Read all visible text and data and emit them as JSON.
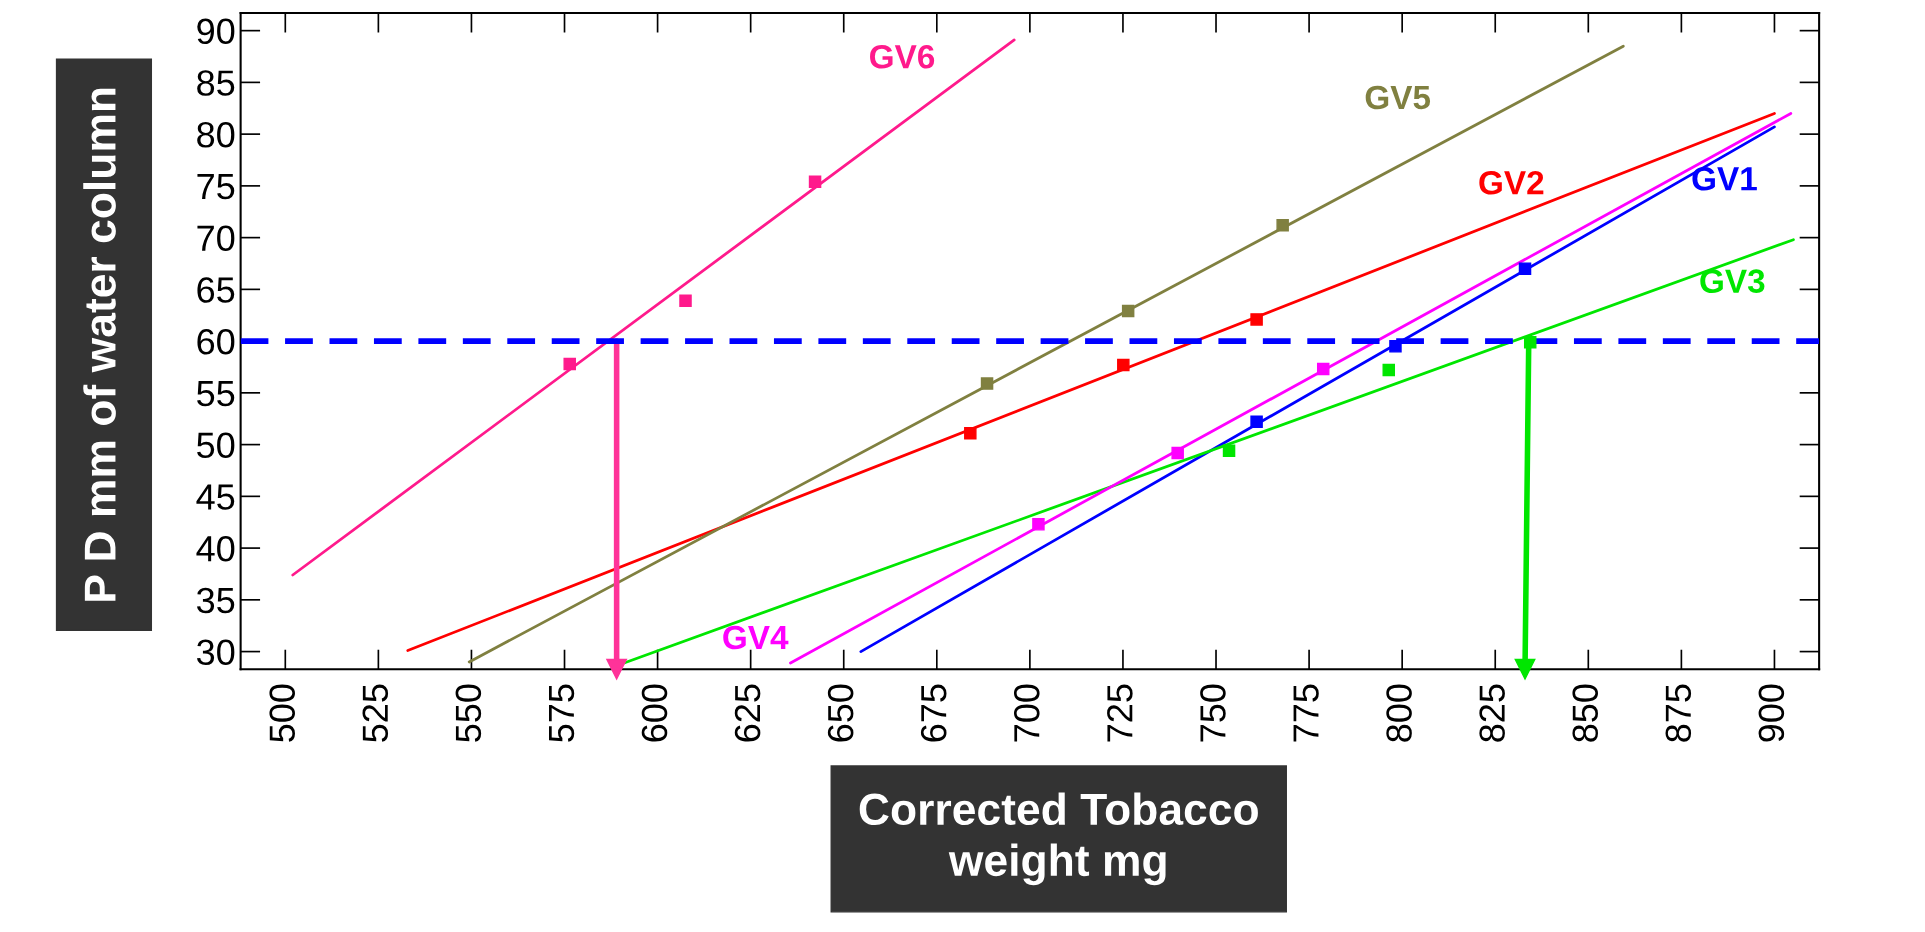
{
  "chart_data": {
    "type": "scatter",
    "xlabel": "Corrected Tobacco\nweight mg",
    "ylabel": "P D mm of water column",
    "xlim": [
      488,
      912
    ],
    "ylim": [
      28.3,
      91.7
    ],
    "xticks": [
      500,
      525,
      550,
      575,
      600,
      625,
      650,
      675,
      700,
      725,
      750,
      775,
      800,
      825,
      850,
      875,
      900
    ],
    "yticks": [
      30,
      35,
      40,
      45,
      50,
      55,
      60,
      65,
      70,
      75,
      80,
      85,
      90
    ],
    "grid": false,
    "legend": false,
    "series": [
      {
        "type": "line",
        "name": "GV1",
        "color": "#0000ff",
        "marker": "none",
        "x": [
          654.6,
          900
        ],
        "values": [
          30.0,
          80.7
        ]
      },
      {
        "type": "line",
        "name": "GV2",
        "color": "#ff0000",
        "marker": "none",
        "x": [
          532.9,
          900
        ],
        "values": [
          30.1,
          82.0
        ]
      },
      {
        "type": "line",
        "name": "GV3",
        "color": "#00e600",
        "marker": "none",
        "x": [
          591,
          905.1
        ],
        "values": [
          28.9,
          69.8
        ]
      },
      {
        "type": "line",
        "name": "GV4",
        "color": "#ff00ff",
        "marker": "none",
        "x": [
          635.7,
          904.4
        ],
        "values": [
          28.9,
          82.0
        ]
      },
      {
        "type": "line",
        "name": "GV5",
        "color": "#808040",
        "marker": "none",
        "x": [
          549.4,
          859.4
        ],
        "values": [
          29.0,
          88.5
        ]
      },
      {
        "type": "line",
        "name": "GV6",
        "color": "#ff1a8c",
        "marker": "none",
        "x": [
          502,
          695.8
        ],
        "values": [
          37.4,
          89.1
        ]
      },
      {
        "color": "#0000ff",
        "marker": "square",
        "x": [
          760.9,
          798.2,
          833.0
        ],
        "values": [
          52.2,
          59.5,
          67.0
        ]
      },
      {
        "color": "#ff0000",
        "marker": "square",
        "x": [
          684.0,
          725.1,
          760.9
        ],
        "values": [
          51.1,
          57.7,
          62.1
        ]
      },
      {
        "color": "#00e600",
        "marker": "square",
        "x": [
          753.5,
          796.4,
          834.4
        ],
        "values": [
          49.4,
          57.2,
          59.9
        ]
      },
      {
        "color": "#ff00ff",
        "marker": "square",
        "x": [
          702.3,
          739.7,
          778.8
        ],
        "values": [
          42.3,
          49.2,
          57.3
        ]
      },
      {
        "color": "#808040",
        "marker": "square",
        "x": [
          688.5,
          726.4,
          767.9
        ],
        "values": [
          55.9,
          62.9,
          71.2
        ]
      },
      {
        "color": "#ff1a8c",
        "marker": "square",
        "x": [
          576.4,
          607.5,
          642.3
        ],
        "values": [
          57.8,
          63.9,
          75.4
        ]
      },
      {
        "type": "line",
        "color": "#ff3399",
        "marker": "triangle",
        "x": [
          589,
          589
        ],
        "values": [
          60,
          28.3
        ]
      },
      {
        "type": "line",
        "color": "#00e600",
        "marker": "triangle",
        "x": [
          834,
          833
        ],
        "values": [
          60,
          28.3
        ]
      }
    ],
    "ref_lines": [
      {
        "axis": "y",
        "value": 60,
        "color": "#0000ff",
        "line_style": "dashed"
      }
    ]
  }
}
